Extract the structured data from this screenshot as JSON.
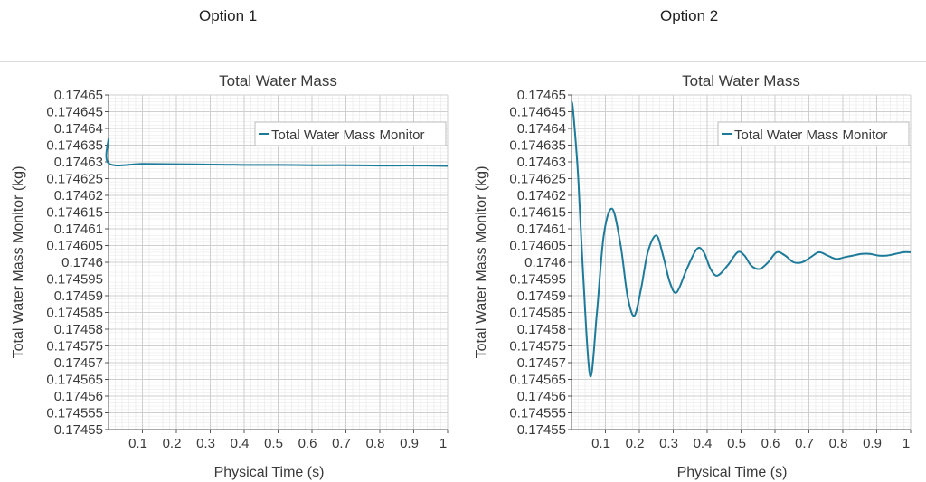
{
  "options": [
    "Option 1",
    "Option 2"
  ],
  "chart_data": [
    {
      "type": "line",
      "title": "Total Water Mass",
      "xlabel": "Physical Time (s)",
      "ylabel": "Total Water Mass Monitor (kg)",
      "xlim": [
        0,
        1
      ],
      "ylim": [
        0.17455,
        0.17465
      ],
      "x_ticks": [
        "0.1",
        "0.2",
        "0.3",
        "0.4",
        "0.5",
        "0.6",
        "0.7",
        "0.8",
        "0.9",
        "1"
      ],
      "y_ticks": [
        "0.17465",
        "0.174645",
        "0.17464",
        "0.174635",
        "0.17463",
        "0.174625",
        "0.17462",
        "0.174615",
        "0.17461",
        "0.174605",
        "0.1746",
        "0.174595",
        "0.17459",
        "0.174585",
        "0.17458",
        "0.174575",
        "0.17457",
        "0.174565",
        "0.17456",
        "0.174555",
        "0.17455"
      ],
      "grid": true,
      "legend_position": "top-right",
      "series": [
        {
          "name": "Total Water Mass Monitor",
          "color": "#1e7a99",
          "x": [
            0,
            0.001,
            0.1,
            0.2,
            0.3,
            0.4,
            0.5,
            0.6,
            0.7,
            0.8,
            0.9,
            1.0
          ],
          "y": [
            0.174637,
            0.1746295,
            0.1746294,
            0.1746293,
            0.1746292,
            0.1746291,
            0.1746291,
            0.174629,
            0.174629,
            0.1746289,
            0.1746289,
            0.1746288
          ]
        }
      ]
    },
    {
      "type": "line",
      "title": "Total Water Mass",
      "xlabel": "Physical Time (s)",
      "ylabel": "Total Water Mass Monitor (kg)",
      "xlim": [
        0,
        1
      ],
      "ylim": [
        0.17455,
        0.17465
      ],
      "x_ticks": [
        "0.1",
        "0.2",
        "0.3",
        "0.4",
        "0.5",
        "0.6",
        "0.7",
        "0.8",
        "0.9",
        "1"
      ],
      "y_ticks": [
        "0.17465",
        "0.174645",
        "0.17464",
        "0.174635",
        "0.17463",
        "0.174625",
        "0.17462",
        "0.174615",
        "0.17461",
        "0.174605",
        "0.1746",
        "0.174595",
        "0.17459",
        "0.174585",
        "0.17458",
        "0.174575",
        "0.17457",
        "0.174565",
        "0.17456",
        "0.174555",
        "0.17455"
      ],
      "grid": true,
      "legend_position": "top-right",
      "series": [
        {
          "name": "Total Water Mass Monitor",
          "color": "#1e7a99",
          "x": [
            0,
            0.005,
            0.02,
            0.035,
            0.055,
            0.075,
            0.095,
            0.12,
            0.145,
            0.165,
            0.185,
            0.205,
            0.225,
            0.25,
            0.27,
            0.29,
            0.31,
            0.34,
            0.37,
            0.39,
            0.41,
            0.43,
            0.46,
            0.49,
            0.51,
            0.53,
            0.555,
            0.58,
            0.605,
            0.63,
            0.655,
            0.68,
            0.705,
            0.73,
            0.755,
            0.78,
            0.805,
            0.83,
            0.855,
            0.88,
            0.905,
            0.93,
            0.955,
            0.98,
            1.0
          ],
          "y": [
            0.174648,
            0.174645,
            0.174625,
            0.174595,
            0.174566,
            0.174585,
            0.174608,
            0.174616,
            0.174605,
            0.17459,
            0.174584,
            0.174592,
            0.174603,
            0.174608,
            0.174602,
            0.174594,
            0.174591,
            0.174598,
            0.174604,
            0.174603,
            0.174598,
            0.174596,
            0.174599,
            0.174603,
            0.174602,
            0.174599,
            0.174598,
            0.1746,
            0.174603,
            0.174602,
            0.1746,
            0.1746,
            0.1746015,
            0.174603,
            0.174602,
            0.174601,
            0.1746015,
            0.174602,
            0.1746025,
            0.1746025,
            0.174602,
            0.174602,
            0.1746025,
            0.174603,
            0.174603
          ]
        }
      ]
    }
  ]
}
